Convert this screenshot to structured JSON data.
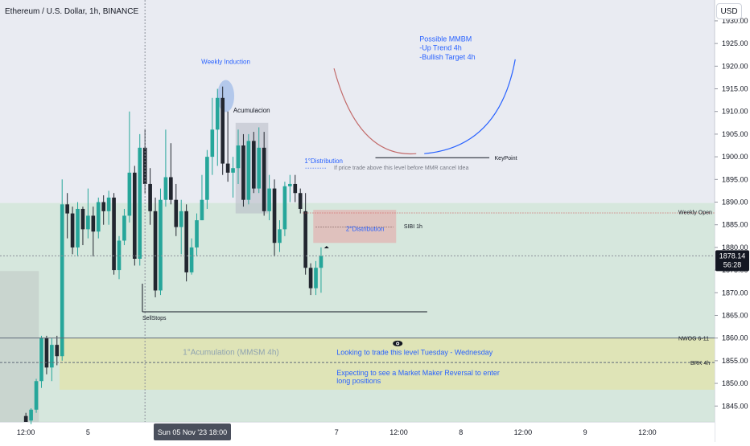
{
  "header": {
    "symbol_title": "Ethereum / U.S. Dollar, 1h, BINANCE",
    "currency_button": "USD"
  },
  "price_tag": {
    "price": "1878.14",
    "countdown": "56:28"
  },
  "x_axis": {
    "ticks": [
      {
        "label": "12:00",
        "bar": 0
      },
      {
        "label": "5",
        "bar": 12
      },
      {
        "label": "12:00",
        "bar": 36
      },
      {
        "label": "7",
        "bar": 60
      },
      {
        "label": "12:00",
        "bar": 72
      },
      {
        "label": "8",
        "bar": 84
      },
      {
        "label": "12:00",
        "bar": 96
      },
      {
        "label": "9",
        "bar": 108
      },
      {
        "label": "12:00",
        "bar": 120
      }
    ],
    "crosshair_label": "Sun 05 Nov '23   18:00"
  },
  "annotations": {
    "weekly_induction": "Weekly Induction",
    "acumulacion": "Acumulacion",
    "distribution_1": "1°Distribution",
    "cancel_note": "If price trade above this level before MMR cancel Idea",
    "distribution_2": "2°Distribution",
    "sibi": "SIBI 1h",
    "weekly_open": "Weekly Open",
    "keypoint": "KeyPoint",
    "sellstops": "SellStops",
    "nwog": "NWOG 6-11",
    "brk": "BRK 4h",
    "accumulation_zone": "1°Acumulation (MMSM 4h)",
    "mmbm_title": "Possible MMBM",
    "mmbm_line1": "-Up Trend 4h",
    "mmbm_line2": "-Bullish Target 4h",
    "plan_line1": "Looking to trade this level Tuesday - Wednesday",
    "plan_line2": "Expecting to see a Market Maker Reversal to enter",
    "plan_line3": "long positions"
  },
  "colors": {
    "up": "#26a69a",
    "down": "#22262f",
    "accent_blue": "#2962ff",
    "arc_red": "#c26a6a",
    "price_tag_bg": "#131722"
  },
  "chart_data": {
    "type": "candlestick",
    "timeframe": "1h",
    "y_axis": {
      "ticks": [
        1845,
        1850,
        1855,
        1860,
        1865,
        1870,
        1875,
        1880,
        1885,
        1890,
        1895,
        1900,
        1905,
        1910,
        1915,
        1920,
        1925,
        1930
      ],
      "range": [
        1841.5,
        1934.6
      ]
    },
    "x_range_bars": [
      -5,
      133
    ],
    "candles": [
      [
        1842.8,
        1843.5,
        1841.5,
        1841.5
      ],
      [
        1841.8,
        1844.5,
        1841.0,
        1844.2
      ],
      [
        1844.2,
        1851.0,
        1843.5,
        1850.5
      ],
      [
        1850.5,
        1860.5,
        1849.0,
        1860.0
      ],
      [
        1860.0,
        1860.5,
        1852.0,
        1853.5
      ],
      [
        1853.5,
        1860.0,
        1850.5,
        1858.5
      ],
      [
        1858.5,
        1860.5,
        1854.0,
        1856.0
      ],
      [
        1856.0,
        1895.0,
        1855.0,
        1889.5
      ],
      [
        1889.5,
        1892.0,
        1882.0,
        1887.5
      ],
      [
        1887.5,
        1889.0,
        1878.5,
        1880.0
      ],
      [
        1880.0,
        1890.0,
        1878.0,
        1888.5
      ],
      [
        1888.5,
        1889.0,
        1880.5,
        1884.0
      ],
      [
        1884.0,
        1893.0,
        1882.0,
        1887.0
      ],
      [
        1887.0,
        1889.0,
        1878.0,
        1883.5
      ],
      [
        1883.5,
        1891.0,
        1882.0,
        1890.0
      ],
      [
        1890.0,
        1891.5,
        1885.0,
        1888.0
      ],
      [
        1888.0,
        1892.5,
        1885.0,
        1891.0
      ],
      [
        1891.0,
        1892.0,
        1874.0,
        1875.0
      ],
      [
        1875.0,
        1882.5,
        1873.0,
        1881.5
      ],
      [
        1881.5,
        1888.5,
        1880.5,
        1887.0
      ],
      [
        1887.0,
        1910.0,
        1885.5,
        1896.5
      ],
      [
        1896.5,
        1898.0,
        1876.0,
        1877.5
      ],
      [
        1877.5,
        1905.0,
        1876.0,
        1902.0
      ],
      [
        1902.0,
        1906.0,
        1892.0,
        1894.0
      ],
      [
        1894.0,
        1897.5,
        1885.0,
        1888.0
      ],
      [
        1888.0,
        1891.0,
        1869.0,
        1870.5
      ],
      [
        1870.5,
        1893.0,
        1869.5,
        1890.5
      ],
      [
        1890.5,
        1906.0,
        1889.0,
        1895.5
      ],
      [
        1895.5,
        1903.0,
        1889.5,
        1890.5
      ],
      [
        1890.5,
        1894.0,
        1882.5,
        1884.5
      ],
      [
        1884.5,
        1890.5,
        1878.5,
        1888.0
      ],
      [
        1888.0,
        1889.5,
        1872.5,
        1874.5
      ],
      [
        1874.5,
        1882.0,
        1874.0,
        1880.0
      ],
      [
        1880.0,
        1887.5,
        1878.0,
        1886.0
      ],
      [
        1886.0,
        1896.0,
        1886.0,
        1890.5
      ],
      [
        1890.5,
        1901.5,
        1888.5,
        1900.0
      ],
      [
        1900.0,
        1913.0,
        1896.0,
        1906.0
      ],
      [
        1906.0,
        1915.0,
        1898.0,
        1913.0
      ],
      [
        1913.0,
        1915.5,
        1896.0,
        1898.5
      ],
      [
        1898.5,
        1910.0,
        1894.5,
        1896.5
      ],
      [
        1896.5,
        1900.0,
        1891.0,
        1897.5
      ],
      [
        1897.5,
        1906.0,
        1894.0,
        1902.5
      ],
      [
        1902.5,
        1905.0,
        1889.0,
        1890.5
      ],
      [
        1890.5,
        1905.0,
        1889.5,
        1903.5
      ],
      [
        1903.5,
        1905.5,
        1892.0,
        1893.0
      ],
      [
        1893.0,
        1906.5,
        1892.0,
        1902.0
      ],
      [
        1902.0,
        1905.5,
        1887.0,
        1888.0
      ],
      [
        1888.0,
        1896.0,
        1886.0,
        1893.0
      ],
      [
        1893.0,
        1895.0,
        1878.0,
        1881.0
      ],
      [
        1881.0,
        1886.0,
        1879.0,
        1884.0
      ],
      [
        1884.0,
        1894.5,
        1882.5,
        1893.5
      ],
      [
        1893.5,
        1896.0,
        1890.0,
        1894.0
      ],
      [
        1894.0,
        1896.0,
        1890.0,
        1892.0
      ],
      [
        1892.0,
        1893.0,
        1887.5,
        1888.5
      ],
      [
        1888.0,
        1892.0,
        1874.0,
        1875.5
      ],
      [
        1875.5,
        1876.5,
        1869.5,
        1871.0
      ],
      [
        1871.0,
        1877.0,
        1869.5,
        1875.5
      ],
      [
        1875.5,
        1880.0,
        1870.0,
        1878.1
      ]
    ],
    "volume_profile_bands": [
      1887,
      1889,
      1877,
      1880,
      1858,
      1860
    ]
  }
}
